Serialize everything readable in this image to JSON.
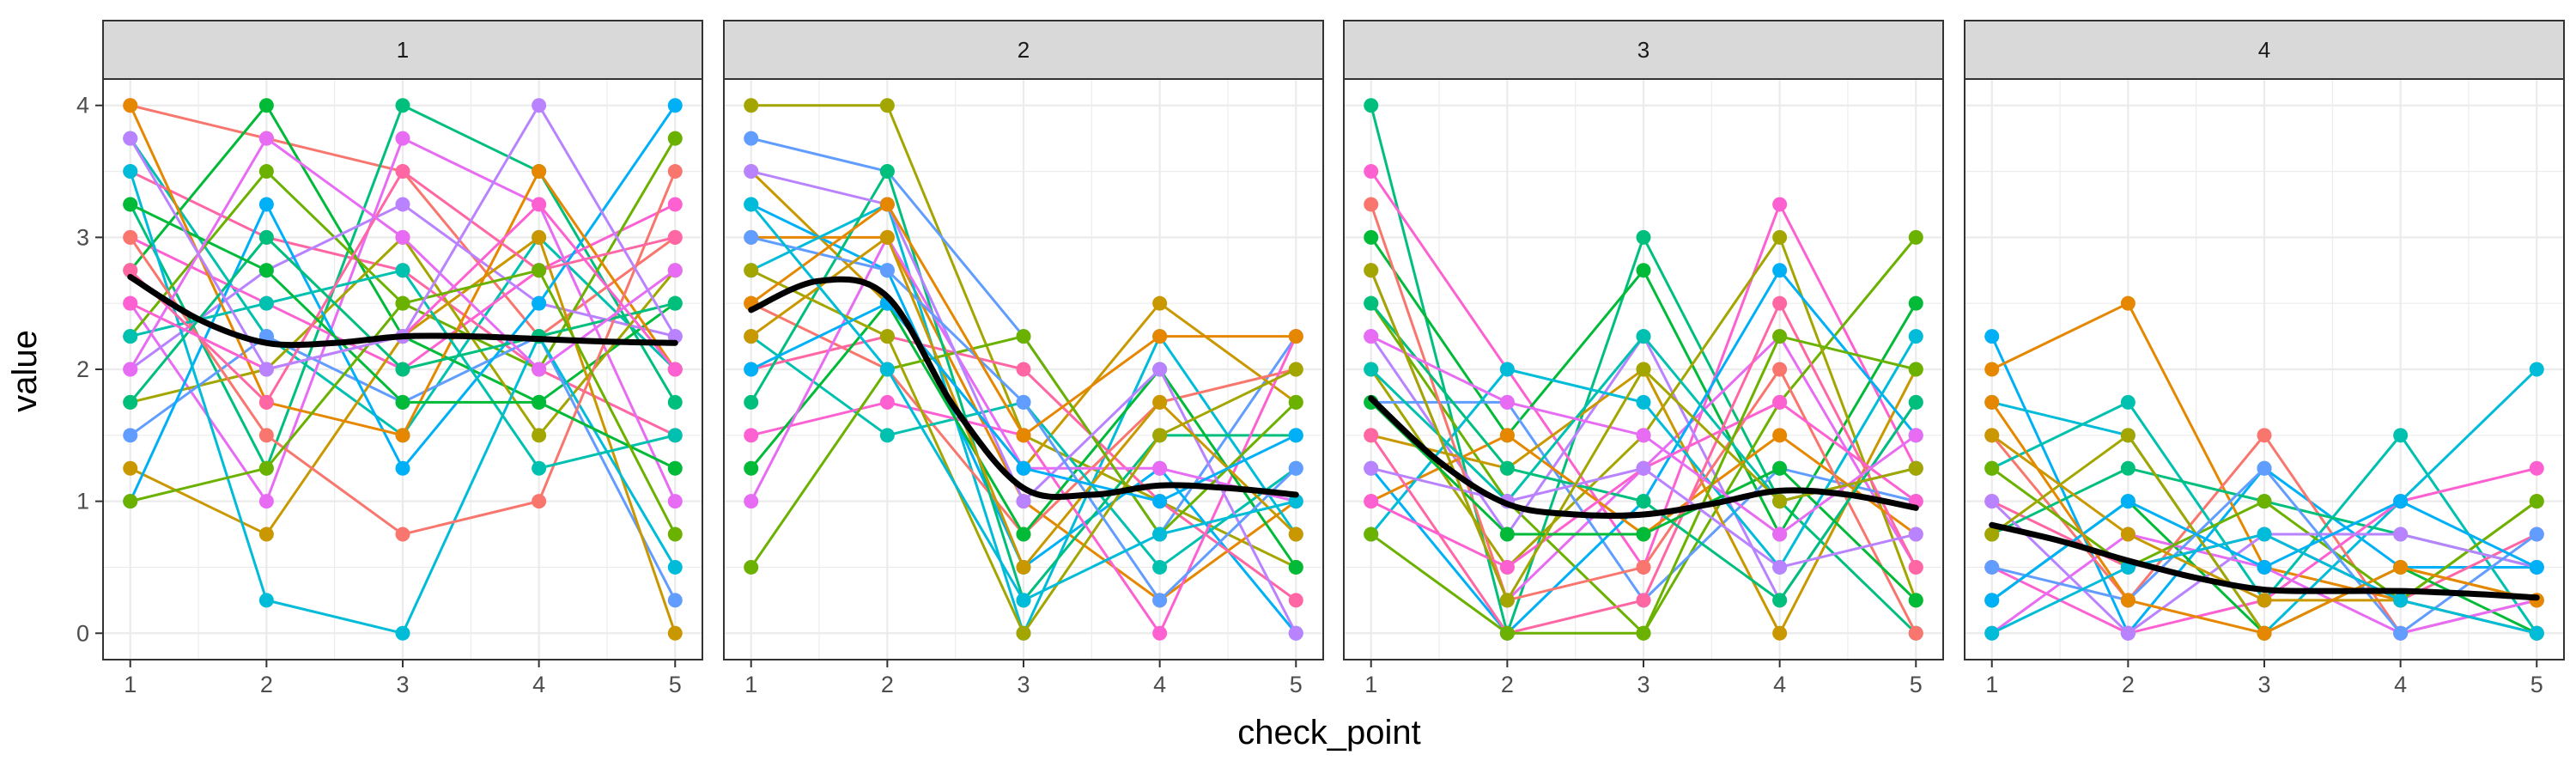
{
  "chart_data": {
    "type": "line",
    "facet_variable": "",
    "panels": [
      {
        "label": "1",
        "smooth": [
          [
            1,
            2.7
          ],
          [
            1.5,
            2.38
          ],
          [
            2,
            2.2
          ],
          [
            2.5,
            2.2
          ],
          [
            3,
            2.25
          ],
          [
            3.5,
            2.25
          ],
          [
            4,
            2.23
          ],
          [
            4.5,
            2.21
          ],
          [
            5,
            2.2
          ]
        ],
        "series": [
          [
            4,
            3.75,
            3.5,
            2.25,
            3
          ],
          [
            3.75,
            2.25,
            1.5,
            3,
            2
          ],
          [
            3.5,
            3,
            2.75,
            2,
            1.5
          ],
          [
            3.25,
            1.25,
            4,
            3.5,
            1.75
          ],
          [
            3,
            2.5,
            2,
            2.75,
            3.25
          ],
          [
            2.75,
            4,
            2.25,
            1.75,
            2.5
          ],
          [
            2.5,
            1,
            3.75,
            3.25,
            1
          ],
          [
            2.25,
            3.5,
            2.5,
            2,
            3.75
          ],
          [
            2,
            2.75,
            3.25,
            2.5,
            2.25
          ],
          [
            1.75,
            2,
            3,
            1.5,
            2.75
          ],
          [
            1.5,
            2.25,
            1.75,
            2.25,
            0.25
          ],
          [
            1.25,
            0.75,
            2.25,
            3,
            0
          ],
          [
            1,
            3.25,
            1.25,
            2.5,
            4
          ],
          [
            4,
            1.75,
            1.5,
            3.5,
            2
          ],
          [
            3.5,
            0.25,
            0,
            2.25,
            0.5
          ],
          [
            3,
            1.5,
            0.75,
            1,
            3.5
          ],
          [
            2.25,
            2.5,
            2.75,
            1.25,
            1.5
          ],
          [
            2.75,
            1.75,
            3.5,
            2.75,
            3
          ],
          [
            1.75,
            3,
            2,
            2.25,
            2.5
          ],
          [
            2.5,
            2,
            2.25,
            3.25,
            2
          ],
          [
            3.25,
            2.75,
            1.75,
            1.75,
            1.25
          ],
          [
            2,
            3.75,
            3,
            2,
            2.75
          ],
          [
            1,
            1.25,
            2.5,
            2.75,
            0.75
          ],
          [
            3.75,
            2,
            2.25,
            4,
            2.25
          ]
        ]
      },
      {
        "label": "2",
        "smooth": [
          [
            1,
            2.45
          ],
          [
            1.5,
            2.67
          ],
          [
            2,
            2.55
          ],
          [
            2.5,
            1.7
          ],
          [
            3,
            1.1
          ],
          [
            3.5,
            1.05
          ],
          [
            4,
            1.12
          ],
          [
            4.5,
            1.1
          ],
          [
            5,
            1.05
          ]
        ],
        "series": [
          [
            4,
            4,
            1.5,
            1,
            0.5
          ],
          [
            3.75,
            3.5,
            2.25,
            0.75,
            2.25
          ],
          [
            3.5,
            2.5,
            1.25,
            2.5,
            1.75
          ],
          [
            3.25,
            2.75,
            0.5,
            1.25,
            0
          ],
          [
            3,
            3,
            1,
            0.25,
            1
          ],
          [
            2.75,
            3.25,
            0,
            2.25,
            0.75
          ],
          [
            2.5,
            2,
            0.75,
            1.75,
            2
          ],
          [
            2.25,
            1.5,
            1.75,
            0.5,
            1.25
          ],
          [
            2,
            2.25,
            2,
            1,
            0.25
          ],
          [
            1.75,
            3.5,
            0.25,
            1.5,
            1.5
          ],
          [
            1.5,
            1.75,
            1.5,
            0,
            2.25
          ],
          [
            1.25,
            2.5,
            0.75,
            2,
            0.5
          ],
          [
            1,
            3,
            1.25,
            1.25,
            1
          ],
          [
            0.5,
            2,
            2.25,
            0.75,
            1.75
          ],
          [
            3.5,
            3.25,
            1,
            2,
            0
          ],
          [
            2.75,
            2.25,
            0,
            1.5,
            2
          ],
          [
            3,
            2.75,
            1.75,
            0.25,
            1.25
          ],
          [
            2.25,
            3,
            0.5,
            1.75,
            0.75
          ],
          [
            2,
            2.5,
            1.25,
            1,
            1.5
          ],
          [
            2.5,
            3.25,
            1.5,
            2.25,
            2.25
          ],
          [
            3.25,
            2,
            0.25,
            0.75,
            1
          ]
        ]
      },
      {
        "label": "3",
        "smooth": [
          [
            1,
            1.78
          ],
          [
            1.5,
            1.3
          ],
          [
            2,
            0.98
          ],
          [
            2.5,
            0.9
          ],
          [
            3,
            0.9
          ],
          [
            3.5,
            0.98
          ],
          [
            4,
            1.08
          ],
          [
            4.5,
            1.05
          ],
          [
            5,
            0.95
          ]
        ],
        "series": [
          [
            4,
            0,
            3,
            1,
            0
          ],
          [
            3.5,
            2,
            0.5,
            3.25,
            1.25
          ],
          [
            3,
            1.5,
            2.75,
            0.75,
            2.5
          ],
          [
            2.75,
            0.25,
            1.25,
            2.25,
            0.5
          ],
          [
            2.5,
            1,
            0,
            1.75,
            3
          ],
          [
            2.25,
            0.75,
            2.25,
            0.25,
            1.75
          ],
          [
            2,
            0.5,
            1.5,
            3,
            0.25
          ],
          [
            1.75,
            1.75,
            0.25,
            1.25,
            1
          ],
          [
            1.5,
            1.25,
            2,
            0,
            2
          ],
          [
            1.25,
            0,
            1,
            2.75,
            1.5
          ],
          [
            1,
            1.5,
            0.75,
            1.5,
            0.75
          ],
          [
            0.75,
            2,
            1.75,
            0.5,
            2.25
          ],
          [
            3.25,
            0.25,
            0.5,
            2,
            0
          ],
          [
            2,
            1,
            2.25,
            1,
            1.25
          ],
          [
            1.5,
            0,
            0.25,
            2.5,
            0.5
          ],
          [
            2.5,
            1.25,
            1,
            0.25,
            1.75
          ],
          [
            1,
            0.5,
            1.25,
            1.75,
            1
          ],
          [
            1.75,
            0.75,
            0.75,
            1.25,
            0.25
          ],
          [
            2.25,
            1.75,
            1.5,
            0.75,
            1.5
          ],
          [
            0.75,
            0,
            0,
            2.25,
            2
          ],
          [
            1.25,
            1,
            1.25,
            0.5,
            0.75
          ],
          [
            2.75,
            0.25,
            2,
            1,
            1.25
          ]
        ]
      },
      {
        "label": "4",
        "smooth": [
          [
            1,
            0.82
          ],
          [
            1.5,
            0.7
          ],
          [
            2,
            0.55
          ],
          [
            2.5,
            0.42
          ],
          [
            3,
            0.33
          ],
          [
            3.5,
            0.32
          ],
          [
            4,
            0.32
          ],
          [
            4.5,
            0.3
          ],
          [
            5,
            0.27
          ]
        ],
        "series": [
          [
            2.25,
            0,
            1.25,
            0.5,
            0.5
          ],
          [
            2,
            2.5,
            0.5,
            0.25,
            1
          ],
          [
            1.75,
            1.5,
            0,
            1,
            2
          ],
          [
            1.5,
            0.25,
            1.5,
            0,
            0.25
          ],
          [
            1.25,
            1.75,
            0.25,
            1.5,
            0
          ],
          [
            1,
            0.5,
            0.75,
            0.25,
            0.75
          ],
          [
            0.75,
            1.25,
            1,
            0.75,
            0.5
          ],
          [
            0.5,
            0,
            0.25,
            1,
            1.25
          ],
          [
            0.25,
            1,
            0,
            0.5,
            0
          ],
          [
            0,
            0.75,
            0.5,
            0,
            0.25
          ],
          [
            1.25,
            0.5,
            1,
            0.25,
            1
          ],
          [
            1,
            0,
            0.75,
            0.75,
            0.5
          ],
          [
            0.75,
            1.5,
            0,
            0.5,
            0.25
          ],
          [
            0.5,
            0.25,
            1.25,
            0,
            0.75
          ],
          [
            1.5,
            0.75,
            0.25,
            0.25,
            0
          ],
          [
            0.25,
            1,
            0.5,
            1,
            0.5
          ],
          [
            1.75,
            0.25,
            0,
            0.5,
            0.25
          ],
          [
            0,
            0.5,
            0.75,
            0.25,
            0
          ]
        ]
      }
    ],
    "palette": [
      "#F8766D",
      "#E58700",
      "#C99800",
      "#A3A500",
      "#6BB100",
      "#00BA38",
      "#00BF7D",
      "#00C0AF",
      "#00BCD8",
      "#00B0F6",
      "#619CFF",
      "#B983FF",
      "#E76BF3",
      "#FD61D1",
      "#FF67A4"
    ],
    "smooth_color": "#000000",
    "xlabel": "check_point",
    "ylabel": "value",
    "x_ticks": [
      1,
      2,
      3,
      4,
      5
    ],
    "y_ticks": [
      0,
      1,
      2,
      3,
      4
    ],
    "xlim": [
      0.8,
      5.2
    ],
    "ylim": [
      -0.2,
      4.2
    ],
    "grid": true,
    "strip_fill": "#d9d9d9",
    "legend": "none"
  }
}
